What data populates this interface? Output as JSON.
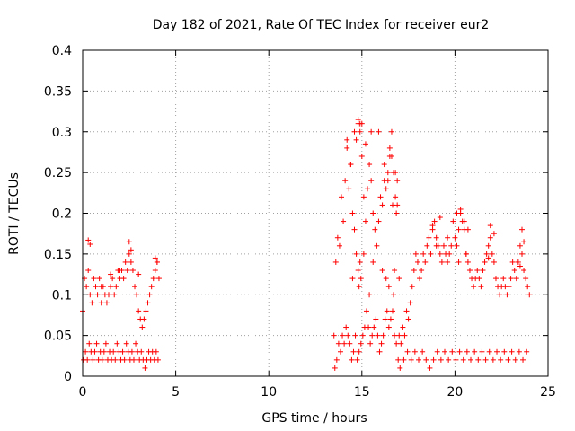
{
  "chart_data": {
    "type": "scatter",
    "title": "Day 182 of 2021, Rate Of TEC Index for receiver eur2",
    "xlabel": "GPS time / hours",
    "ylabel": "ROTI / TECUs",
    "xlim": [
      0,
      25
    ],
    "ylim": [
      0,
      0.4
    ],
    "x_ticks": [
      "0",
      "5",
      "10",
      "15",
      "20",
      "25"
    ],
    "y_ticks": [
      "0",
      "0.05",
      "0.1",
      "0.15",
      "0.2",
      "0.25",
      "0.3",
      "0.35",
      "0.4"
    ],
    "grid": true,
    "marker": "+",
    "color": "#ff0000",
    "series": [
      {
        "x": [
          0.0,
          0.1,
          0.2,
          0.3,
          0.4,
          0.5,
          0.6,
          0.7,
          0.8,
          0.9,
          1.0,
          1.1,
          1.2,
          1.3,
          1.4,
          1.5,
          1.6,
          1.7,
          1.8,
          1.9,
          2.0,
          2.1,
          2.2,
          2.3,
          2.4,
          2.5,
          2.6,
          2.7,
          2.8,
          2.9,
          3.0,
          3.1,
          3.2,
          3.3,
          3.4,
          3.5,
          3.6,
          3.7,
          3.8,
          3.9,
          4.0,
          4.1,
          0.05,
          0.15,
          0.25,
          0.35,
          0.45,
          0.55,
          0.65,
          0.75,
          0.85,
          0.95,
          1.05,
          1.15,
          1.25,
          1.35,
          1.45,
          1.55,
          1.65,
          1.75,
          1.85,
          1.95,
          2.05,
          2.15,
          2.25,
          2.35,
          2.45,
          2.55,
          2.65,
          2.75,
          2.85,
          2.95,
          3.05,
          3.15,
          3.25,
          3.35,
          3.45,
          3.55,
          3.65,
          3.75,
          3.85,
          3.95,
          4.05,
          0.3,
          0.4,
          1.0,
          1.5,
          2.0,
          2.5,
          2.6,
          3.0,
          3.9,
          4.0,
          13.5,
          13.6,
          13.7,
          13.8,
          13.9,
          14.0,
          14.1,
          14.2,
          14.3,
          14.4,
          14.5,
          14.6,
          14.7,
          14.8,
          14.9,
          15.0,
          15.1,
          15.2,
          15.3,
          15.4,
          15.5,
          15.6,
          15.7,
          15.8,
          15.9,
          16.0,
          16.1,
          16.2,
          16.3,
          16.4,
          16.5,
          16.6,
          16.7,
          16.8,
          16.9,
          17.0,
          13.55,
          13.65,
          13.75,
          13.85,
          13.95,
          14.05,
          14.15,
          14.25,
          14.35,
          14.45,
          14.55,
          14.65,
          14.75,
          14.85,
          14.95,
          15.05,
          15.15,
          15.25,
          15.35,
          15.45,
          15.55,
          15.65,
          15.75,
          15.85,
          15.95,
          16.05,
          16.15,
          16.25,
          16.35,
          16.45,
          16.55,
          16.65,
          16.75,
          16.85,
          16.95,
          14.2,
          14.4,
          14.6,
          14.8,
          14.9,
          15.0,
          15.2,
          15.5,
          15.9,
          16.2,
          16.4,
          16.5,
          16.6,
          16.8,
          16.9,
          16.85,
          16.65,
          14.5,
          14.7,
          14.8,
          14.85,
          14.9,
          14.95,
          15.1,
          15.4,
          15.6,
          16.1,
          16.3,
          16.45,
          16.7,
          16.75,
          17.0,
          17.1,
          17.2,
          17.3,
          17.4,
          17.5,
          17.6,
          17.7,
          17.8,
          17.9,
          18.0,
          18.1,
          18.2,
          18.3,
          18.4,
          18.5,
          18.6,
          18.7,
          18.8,
          18.9,
          19.0,
          19.1,
          19.2,
          19.3,
          19.4,
          19.5,
          19.6,
          19.7,
          19.8,
          19.9,
          20.0,
          20.1,
          20.2,
          20.3,
          20.4,
          20.5,
          20.6,
          20.7,
          20.8,
          20.9,
          21.0,
          21.1,
          21.2,
          21.3,
          21.4,
          21.5,
          21.6,
          21.7,
          21.8,
          21.9,
          22.0,
          22.1,
          22.2,
          22.3,
          22.4,
          22.5,
          22.6,
          22.7,
          22.8,
          22.9,
          23.0,
          23.1,
          23.2,
          23.3,
          23.4,
          23.5,
          23.6,
          23.7,
          23.8,
          23.9,
          24.0,
          17.05,
          17.25,
          17.45,
          17.65,
          17.85,
          18.05,
          18.25,
          18.45,
          18.65,
          18.85,
          19.05,
          19.25,
          19.45,
          19.65,
          19.85,
          20.05,
          20.25,
          20.45,
          20.65,
          20.85,
          21.05,
          21.25,
          21.45,
          21.65,
          21.85,
          22.05,
          22.25,
          22.45,
          22.65,
          22.85,
          23.05,
          23.25,
          23.45,
          23.65,
          23.85,
          18.8,
          19.2,
          19.6,
          20.1,
          20.3,
          20.5,
          20.7,
          21.9,
          22.1,
          23.6,
          23.7,
          19.0,
          20.2,
          20.6,
          21.8,
          23.5
        ],
        "y": [
          0.08,
          0.12,
          0.11,
          0.13,
          0.1,
          0.09,
          0.12,
          0.11,
          0.1,
          0.12,
          0.09,
          0.11,
          0.1,
          0.09,
          0.1,
          0.11,
          0.12,
          0.1,
          0.11,
          0.13,
          0.12,
          0.13,
          0.12,
          0.14,
          0.13,
          0.15,
          0.14,
          0.13,
          0.11,
          0.1,
          0.08,
          0.07,
          0.06,
          0.07,
          0.08,
          0.09,
          0.1,
          0.11,
          0.12,
          0.13,
          0.14,
          0.12,
          0.02,
          0.03,
          0.02,
          0.04,
          0.03,
          0.02,
          0.03,
          0.04,
          0.02,
          0.03,
          0.02,
          0.03,
          0.04,
          0.02,
          0.03,
          0.02,
          0.03,
          0.02,
          0.04,
          0.03,
          0.02,
          0.03,
          0.02,
          0.04,
          0.03,
          0.02,
          0.03,
          0.02,
          0.04,
          0.03,
          0.02,
          0.03,
          0.02,
          0.01,
          0.02,
          0.03,
          0.02,
          0.03,
          0.02,
          0.03,
          0.02,
          0.167,
          0.162,
          0.11,
          0.125,
          0.13,
          0.165,
          0.155,
          0.125,
          0.145,
          0.14,
          0.05,
          0.14,
          0.17,
          0.16,
          0.22,
          0.19,
          0.24,
          0.28,
          0.23,
          0.26,
          0.2,
          0.18,
          0.29,
          0.31,
          0.3,
          0.27,
          0.22,
          0.19,
          0.23,
          0.26,
          0.24,
          0.2,
          0.18,
          0.16,
          0.19,
          0.22,
          0.21,
          0.26,
          0.23,
          0.24,
          0.28,
          0.27,
          0.25,
          0.22,
          0.21,
          0.12,
          0.01,
          0.02,
          0.04,
          0.03,
          0.05,
          0.04,
          0.06,
          0.05,
          0.04,
          0.02,
          0.03,
          0.05,
          0.02,
          0.03,
          0.04,
          0.05,
          0.06,
          0.08,
          0.06,
          0.04,
          0.05,
          0.06,
          0.07,
          0.05,
          0.03,
          0.04,
          0.05,
          0.07,
          0.08,
          0.06,
          0.07,
          0.08,
          0.05,
          0.04,
          0.02,
          0.29,
          0.26,
          0.3,
          0.315,
          0.31,
          0.31,
          0.285,
          0.3,
          0.3,
          0.24,
          0.25,
          0.27,
          0.3,
          0.25,
          0.24,
          0.2,
          0.21,
          0.12,
          0.15,
          0.13,
          0.11,
          0.14,
          0.12,
          0.15,
          0.1,
          0.14,
          0.13,
          0.12,
          0.11,
          0.1,
          0.13,
          0.05,
          0.04,
          0.06,
          0.05,
          0.08,
          0.07,
          0.09,
          0.11,
          0.13,
          0.15,
          0.14,
          0.12,
          0.13,
          0.15,
          0.14,
          0.16,
          0.17,
          0.15,
          0.18,
          0.19,
          0.17,
          0.16,
          0.15,
          0.14,
          0.16,
          0.15,
          0.14,
          0.15,
          0.16,
          0.19,
          0.17,
          0.16,
          0.18,
          0.2,
          0.19,
          0.18,
          0.15,
          0.14,
          0.13,
          0.12,
          0.11,
          0.12,
          0.13,
          0.12,
          0.11,
          0.13,
          0.14,
          0.15,
          0.16,
          0.17,
          0.15,
          0.14,
          0.12,
          0.11,
          0.1,
          0.11,
          0.12,
          0.11,
          0.1,
          0.11,
          0.12,
          0.14,
          0.13,
          0.12,
          0.14,
          0.16,
          0.15,
          0.13,
          0.12,
          0.11,
          0.1,
          0.01,
          0.02,
          0.03,
          0.02,
          0.03,
          0.02,
          0.03,
          0.02,
          0.01,
          0.02,
          0.03,
          0.02,
          0.03,
          0.02,
          0.03,
          0.02,
          0.03,
          0.02,
          0.03,
          0.02,
          0.03,
          0.02,
          0.03,
          0.02,
          0.03,
          0.02,
          0.03,
          0.02,
          0.03,
          0.02,
          0.03,
          0.02,
          0.03,
          0.02,
          0.03,
          0.185,
          0.195,
          0.17,
          0.2,
          0.205,
          0.19,
          0.18,
          0.185,
          0.175,
          0.18,
          0.165,
          0.16,
          0.14,
          0.15,
          0.145,
          0.135
        ]
      }
    ]
  }
}
